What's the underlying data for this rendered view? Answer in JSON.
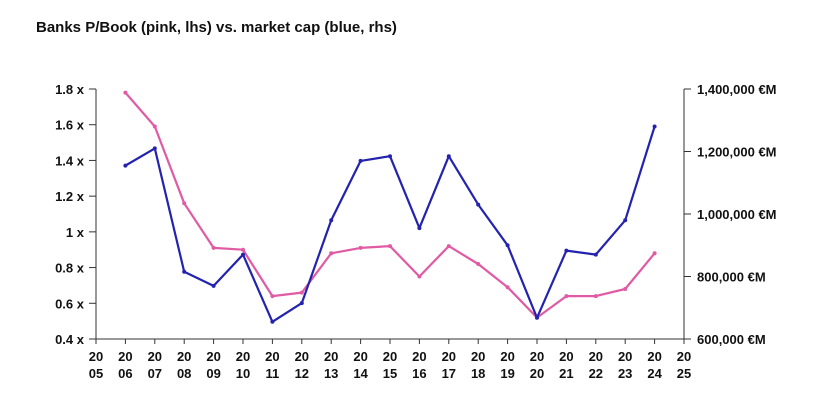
{
  "chart_data": {
    "type": "line",
    "title": "Banks P/Book (pink, lhs) vs. market cap (blue, rhs)",
    "x_ticks": [
      [
        "20",
        "05"
      ],
      [
        "20",
        "06"
      ],
      [
        "20",
        "07"
      ],
      [
        "20",
        "08"
      ],
      [
        "20",
        "09"
      ],
      [
        "20",
        "10"
      ],
      [
        "20",
        "11"
      ],
      [
        "20",
        "12"
      ],
      [
        "20",
        "13"
      ],
      [
        "20",
        "14"
      ],
      [
        "20",
        "15"
      ],
      [
        "20",
        "16"
      ],
      [
        "20",
        "17"
      ],
      [
        "20",
        "18"
      ],
      [
        "20",
        "19"
      ],
      [
        "20",
        "20"
      ],
      [
        "20",
        "21"
      ],
      [
        "20",
        "22"
      ],
      [
        "20",
        "23"
      ],
      [
        "20",
        "24"
      ],
      [
        "20",
        "25"
      ]
    ],
    "x_range": [
      2005,
      2025
    ],
    "left_axis": {
      "ylim": [
        0.4,
        1.8
      ],
      "ticks": [
        0.4,
        0.6,
        0.8,
        1.0,
        1.2,
        1.4,
        1.6,
        1.8
      ],
      "tick_labels": [
        "0.4 x",
        "0.6 x",
        "0.8 x",
        "1 x",
        "1.2 x",
        "1.4 x",
        "1.6 x",
        "1.8 x"
      ]
    },
    "right_axis": {
      "ylim": [
        600000,
        1400000
      ],
      "ticks": [
        600000,
        800000,
        1000000,
        1200000,
        1400000
      ],
      "tick_labels": [
        "600,000 €M",
        "800,000 €M",
        "1,000,000 €M",
        "1,200,000 €M",
        "1,400,000 €M"
      ]
    },
    "series": [
      {
        "axis": "left",
        "color": "#e05aa4",
        "x": [
          2006,
          2007,
          2008,
          2009,
          2010,
          2011,
          2012,
          2013,
          2014,
          2015,
          2016,
          2017,
          2018,
          2019,
          2020,
          2021,
          2022,
          2023,
          2024
        ],
        "values": [
          1.78,
          1.59,
          1.16,
          0.91,
          0.9,
          0.64,
          0.66,
          0.88,
          0.91,
          0.92,
          0.75,
          0.92,
          0.82,
          0.69,
          0.52,
          0.64,
          0.64,
          0.68,
          0.88
        ]
      },
      {
        "axis": "right",
        "color": "#2323b0",
        "x": [
          2006,
          2007,
          2008,
          2009,
          2010,
          2011,
          2012,
          2013,
          2014,
          2015,
          2016,
          2017,
          2018,
          2019,
          2020,
          2021,
          2022,
          2023,
          2024
        ],
        "values": [
          1155000,
          1210000,
          815000,
          770000,
          870000,
          655000,
          715000,
          980000,
          1170000,
          1185000,
          955000,
          1185000,
          1030000,
          900000,
          668000,
          883000,
          870000,
          980000,
          1280000
        ]
      }
    ]
  }
}
